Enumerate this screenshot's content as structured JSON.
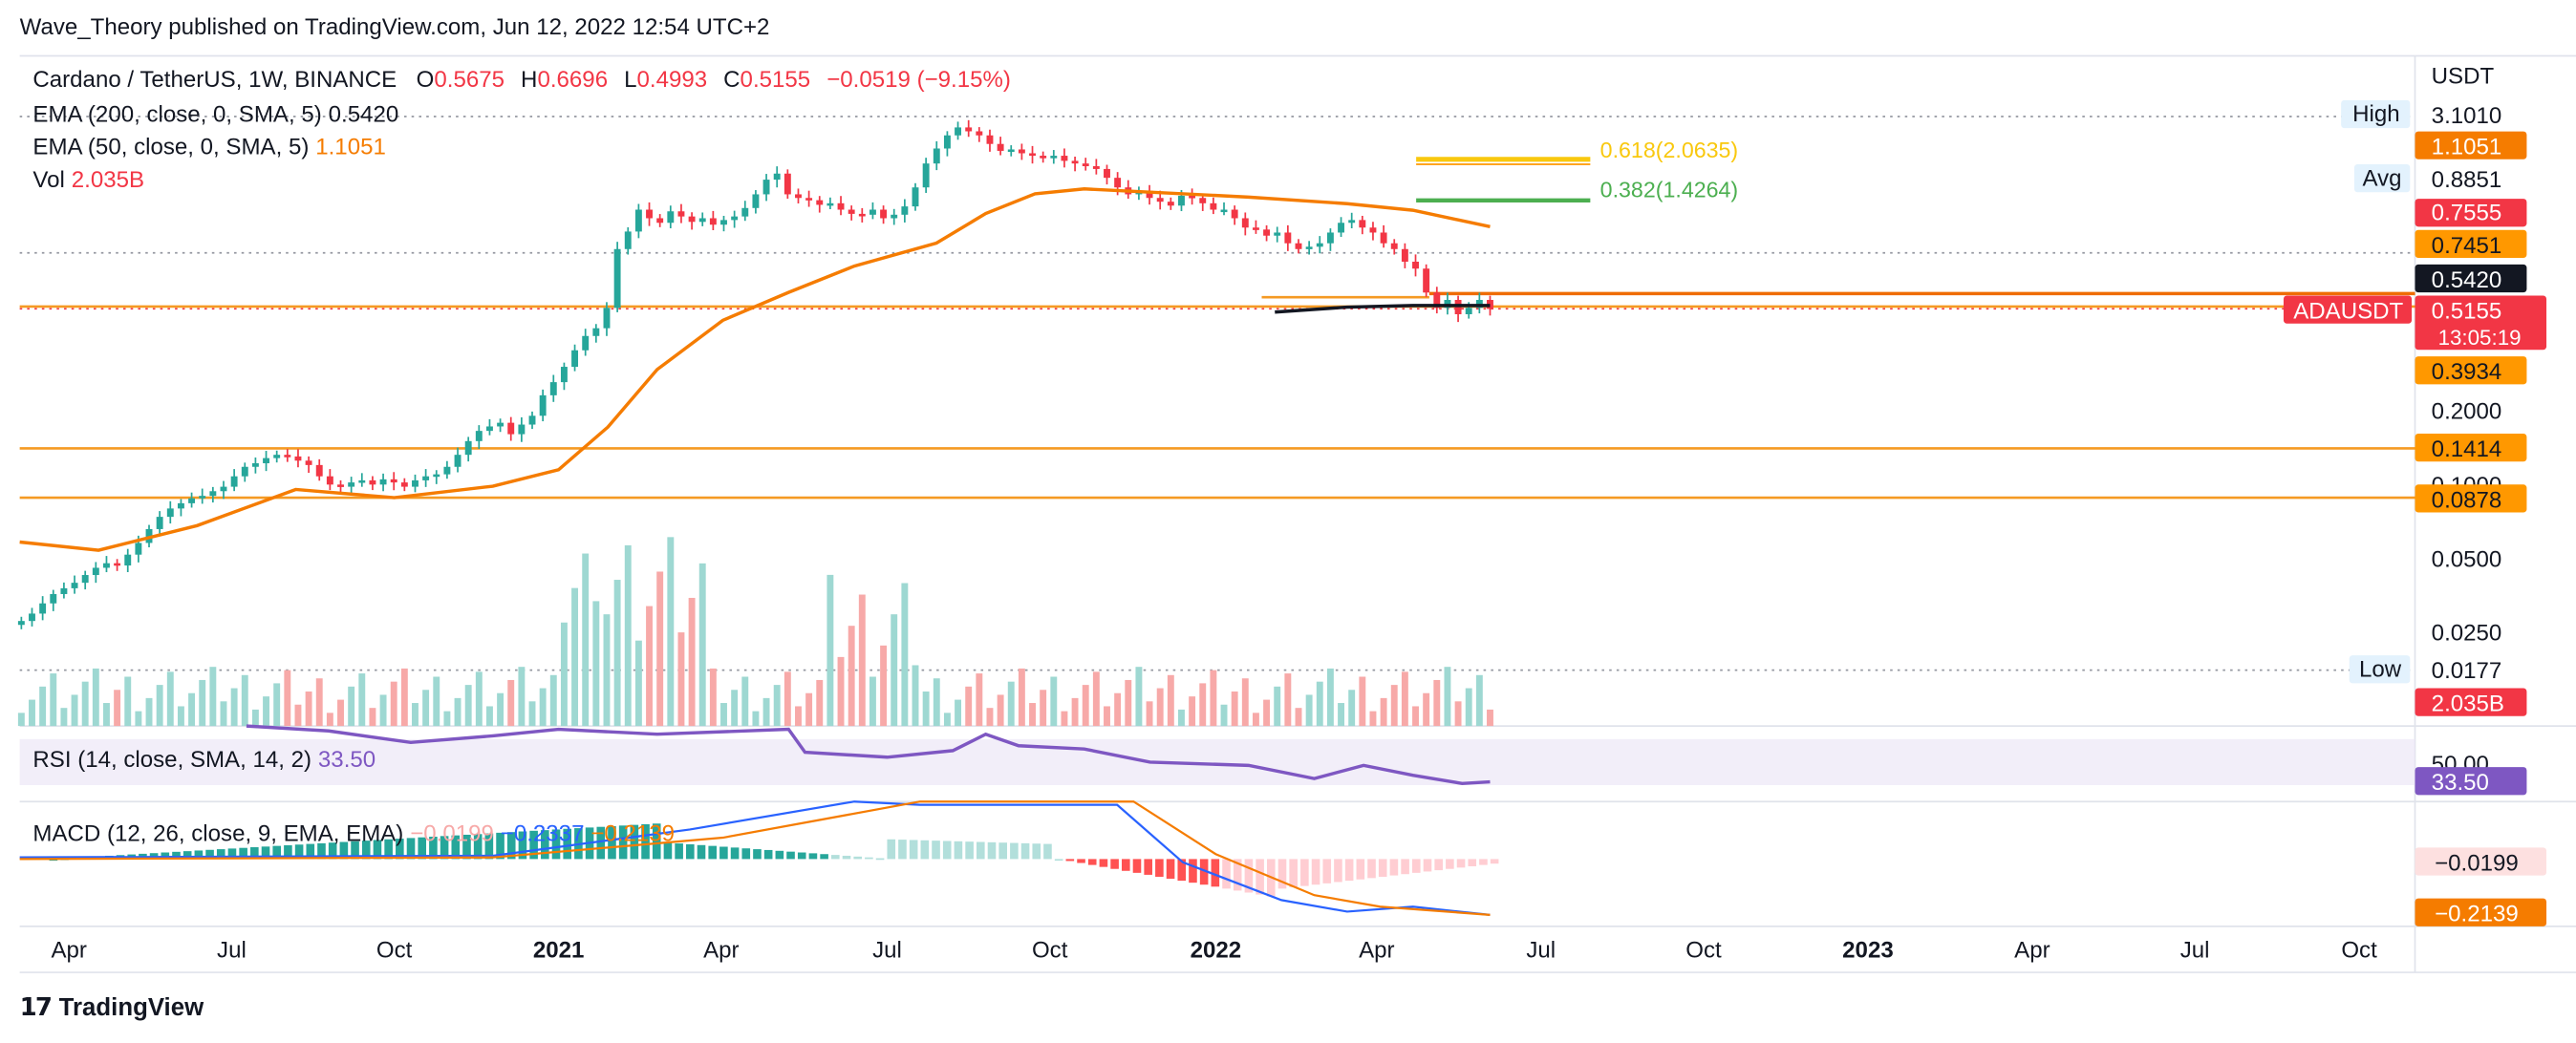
{
  "header": {
    "published": "Wave_Theory published on TradingView.com, Jun 12, 2022 12:54 UTC+2"
  },
  "brand": {
    "logo_glyph": "𝟭𝟳",
    "name": "TradingView"
  },
  "legend": {
    "symbol": "Cardano / TetherUS, 1W, BINANCE",
    "ohlc": {
      "o_label": "O",
      "o": "0.5675",
      "h_label": "H",
      "h": "0.6696",
      "l_label": "L",
      "l": "0.4993",
      "c_label": "C",
      "c": "0.5155",
      "change": "−0.0519 (−9.15%)"
    },
    "ema200": {
      "label": "EMA (200, close, 0, SMA, 5)",
      "value": "0.5420"
    },
    "ema50": {
      "label": "EMA (50, close, 0, SMA, 5)",
      "value": "1.1051"
    },
    "vol": {
      "label": "Vol",
      "value": "2.035B"
    },
    "rsi": {
      "label": "RSI (14, close, SMA, 14, 2)",
      "value": "33.50"
    },
    "macd": {
      "label": "MACD (12, 26, close, 9, EMA, EMA)",
      "hist": "−0.0199",
      "macd": "−0.2337",
      "signal": "−0.2139"
    }
  },
  "colors": {
    "up": "#26a69a",
    "down": "#f23645",
    "vol_up": "#9ed8d2",
    "vol_down": "#f7a9a8",
    "ema50": "#f57c00",
    "ema200": "#131722",
    "rsi": "#7e57c2",
    "macd_line": "#2962ff",
    "signal_line": "#f57c00",
    "hline": "#f59a23",
    "fib618": "#f9c80e",
    "fib382": "#4caf50"
  },
  "chart_data": {
    "type": "candlestick",
    "symbol": "ADAUSDT",
    "timeframe": "1W",
    "scale": "log",
    "y_axis_unit": "USDT",
    "x_axis_labels": [
      {
        "label": "Apr",
        "bold": false
      },
      {
        "label": "Jul",
        "bold": false
      },
      {
        "label": "Oct",
        "bold": false
      },
      {
        "label": "2021",
        "bold": true
      },
      {
        "label": "Apr",
        "bold": false
      },
      {
        "label": "Jul",
        "bold": false
      },
      {
        "label": "Oct",
        "bold": false
      },
      {
        "label": "2022",
        "bold": true
      },
      {
        "label": "Apr",
        "bold": false
      },
      {
        "label": "Jul",
        "bold": false
      },
      {
        "label": "Oct",
        "bold": false
      },
      {
        "label": "2023",
        "bold": true
      },
      {
        "label": "Apr",
        "bold": false
      },
      {
        "label": "Jul",
        "bold": false
      },
      {
        "label": "Oct",
        "bold": false
      }
    ],
    "y_ticks": [
      "0.2000",
      "0.1000",
      "0.0500",
      "0.0250"
    ],
    "price_labels": [
      {
        "text": "3.1010",
        "kind": "high",
        "tag": "High",
        "value": 3.101
      },
      {
        "text": "1.1051",
        "kind": "ema50",
        "value": 1.1051
      },
      {
        "text": "0.8851",
        "kind": "avg",
        "tag": "Avg",
        "value": 0.8851
      },
      {
        "text": "0.7555",
        "kind": "red",
        "value": 0.7555
      },
      {
        "text": "0.7451",
        "kind": "orange",
        "value": 0.7451
      },
      {
        "text": "0.5420",
        "kind": "ema200",
        "value": 0.542
      },
      {
        "text": "0.5155",
        "kind": "last",
        "tag": "ADAUSDT",
        "countdown": "13:05:19",
        "value": 0.5155
      },
      {
        "text": "0.3934",
        "kind": "orange",
        "value": 0.3934
      },
      {
        "text": "0.1414",
        "kind": "orange",
        "value": 0.1414
      },
      {
        "text": "0.0878",
        "kind": "orange",
        "value": 0.0878
      },
      {
        "text": "0.0177",
        "kind": "low",
        "tag": "Low",
        "value": 0.0177
      },
      {
        "text": "2.035B",
        "kind": "vol",
        "value": 2.035
      }
    ],
    "pane_labels": [
      {
        "text": "50.00",
        "pane": "rsi"
      },
      {
        "text": "33.50",
        "pane": "rsi"
      },
      {
        "text": "−0.0199",
        "pane": "macd"
      },
      {
        "text": "−0.2139",
        "pane": "macd"
      }
    ],
    "fib_levels": [
      {
        "text": "0.618(2.0635)",
        "ratio": 0.618,
        "price": 2.0635
      },
      {
        "text": "0.382(1.4264)",
        "ratio": 0.382,
        "price": 1.4264
      }
    ],
    "horizontal_levels": [
      0.7451,
      0.542,
      0.3934,
      0.1414,
      0.0878
    ],
    "last": {
      "open": 0.5675,
      "high": 0.6696,
      "low": 0.4993,
      "close": 0.5155
    }
  }
}
